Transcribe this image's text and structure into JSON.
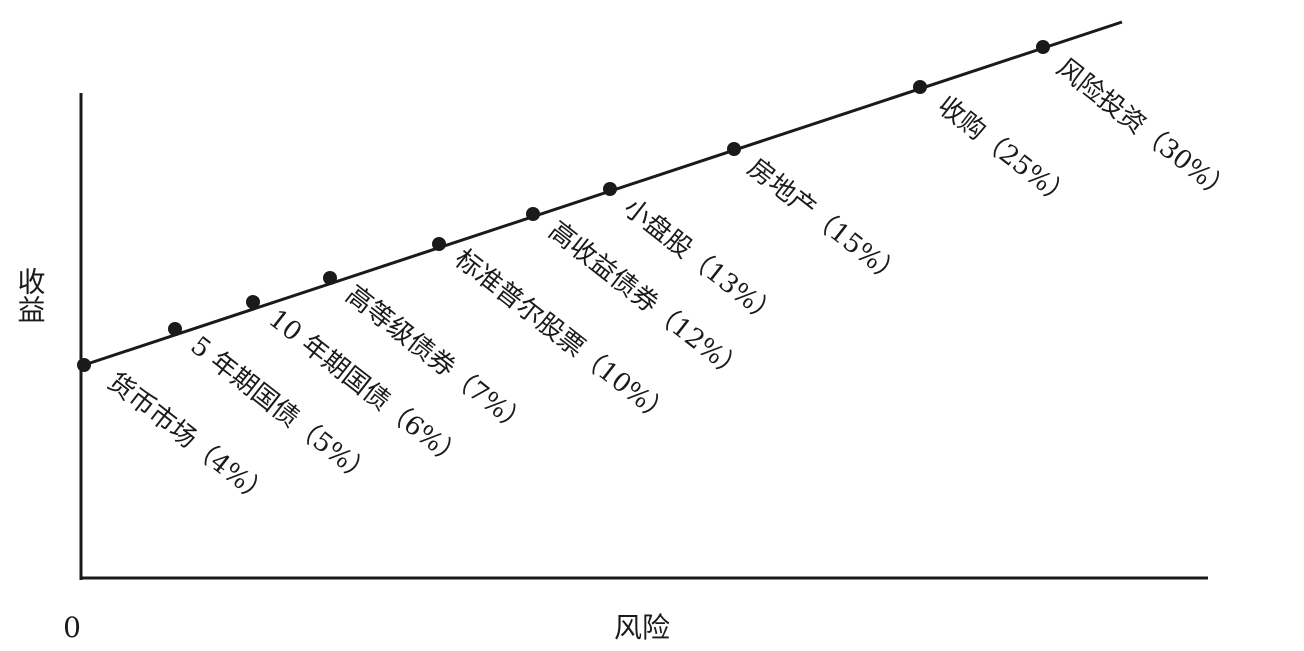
{
  "chart_data": {
    "type": "scatter",
    "title": "",
    "xlabel": "风险",
    "ylabel": "收益",
    "origin_label": "0",
    "grid": false,
    "legend": "none",
    "connected_by_line": true,
    "y_unit": "%",
    "points": [
      {
        "label": "货币市场（4%）",
        "name": "货币市场",
        "return_pct": 4
      },
      {
        "label": "5 年期国债（5%）",
        "name": "5 年期国债",
        "return_pct": 5
      },
      {
        "label": "10 年期国债（6%）",
        "name": "10 年期国债",
        "return_pct": 6
      },
      {
        "label": "高等级债券（7%）",
        "name": "高等级债券",
        "return_pct": 7
      },
      {
        "label": "标准普尔股票（10%）",
        "name": "标准普尔股票",
        "return_pct": 10
      },
      {
        "label": "高收益债券（12%）",
        "name": "高收益债券",
        "return_pct": 12
      },
      {
        "label": "小盘股（13%）",
        "name": "小盘股",
        "return_pct": 13
      },
      {
        "label": "房地产（15%）",
        "name": "房地产",
        "return_pct": 15
      },
      {
        "label": "收购（25%）",
        "name": "收购",
        "return_pct": 25
      },
      {
        "label": "风险投资（30%）",
        "name": "风险投资",
        "return_pct": 30
      }
    ]
  }
}
